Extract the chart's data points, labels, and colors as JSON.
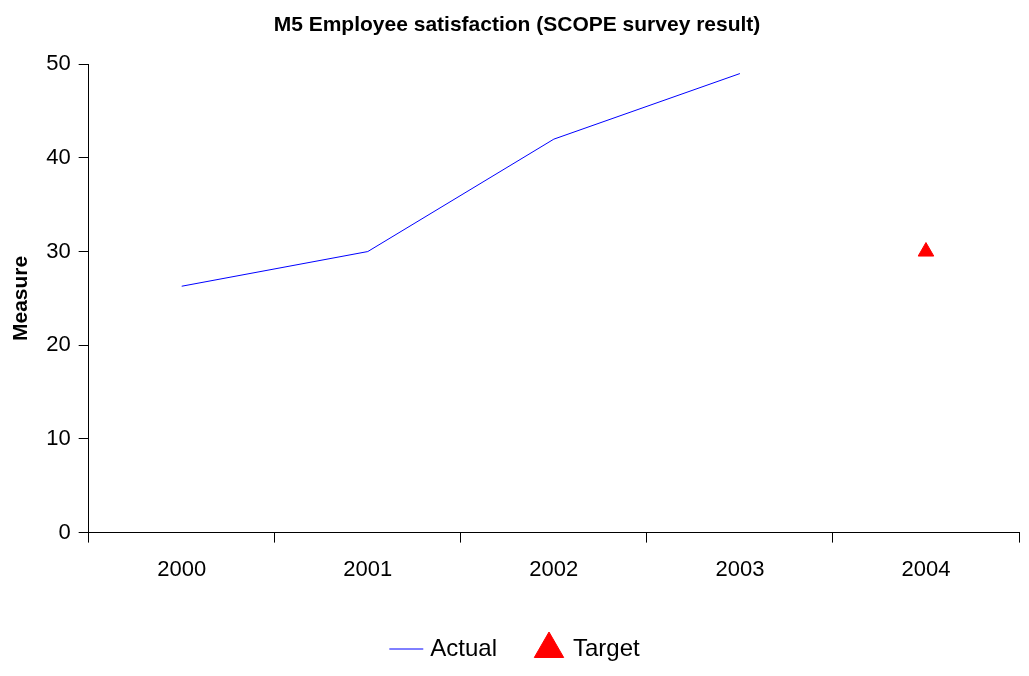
{
  "chart_data": {
    "type": "line",
    "title": "M5 Employee satisfaction (SCOPE survey result)",
    "ylabel": "Measure",
    "categories": [
      "2000",
      "2001",
      "2002",
      "2003",
      "2004"
    ],
    "series": [
      {
        "name": "Actual",
        "color": "#0000ff",
        "marker": "none",
        "values": [
          26.3,
          30,
          42,
          49,
          null
        ]
      },
      {
        "name": "Target",
        "type": "scatter",
        "color": "#ff0000",
        "marker": "triangle",
        "values": [
          null,
          null,
          null,
          null,
          30
        ]
      }
    ],
    "ylim": [
      0,
      50
    ],
    "yticks": [
      0,
      10,
      20,
      30,
      40,
      50
    ],
    "grid": false,
    "legend": "bottom"
  }
}
